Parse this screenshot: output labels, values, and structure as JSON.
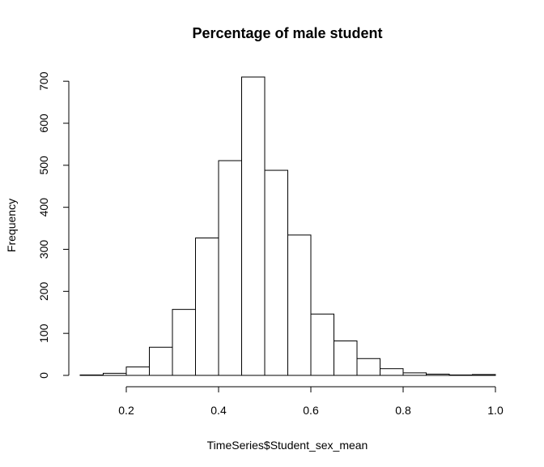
{
  "chart_data": {
    "type": "bar",
    "title": "Percentage of male student",
    "xlabel": "TimeSeries$Student_sex_mean",
    "ylabel": "Frequency",
    "bin_edges": [
      0.1,
      0.15,
      0.2,
      0.25,
      0.3,
      0.35,
      0.4,
      0.45,
      0.5,
      0.55,
      0.6,
      0.65,
      0.7,
      0.75,
      0.8,
      0.85,
      0.9,
      0.95,
      1.0
    ],
    "values": [
      1,
      5,
      20,
      67,
      157,
      327,
      511,
      710,
      488,
      334,
      146,
      82,
      40,
      16,
      6,
      3,
      1,
      2
    ],
    "xlim": [
      0.1,
      1.0
    ],
    "ylim": [
      0,
      710
    ],
    "x_ticks": [
      0.2,
      0.4,
      0.6,
      0.8,
      1.0
    ],
    "x_tick_labels": [
      "0.2",
      "0.4",
      "0.6",
      "0.8",
      "1.0"
    ],
    "y_ticks": [
      0,
      100,
      200,
      300,
      400,
      500,
      600,
      700
    ],
    "y_tick_labels": [
      "0",
      "100",
      "200",
      "300",
      "400",
      "500",
      "600",
      "700"
    ],
    "grid": false,
    "bar_fill": "#ffffff",
    "bar_stroke": "#000000"
  }
}
